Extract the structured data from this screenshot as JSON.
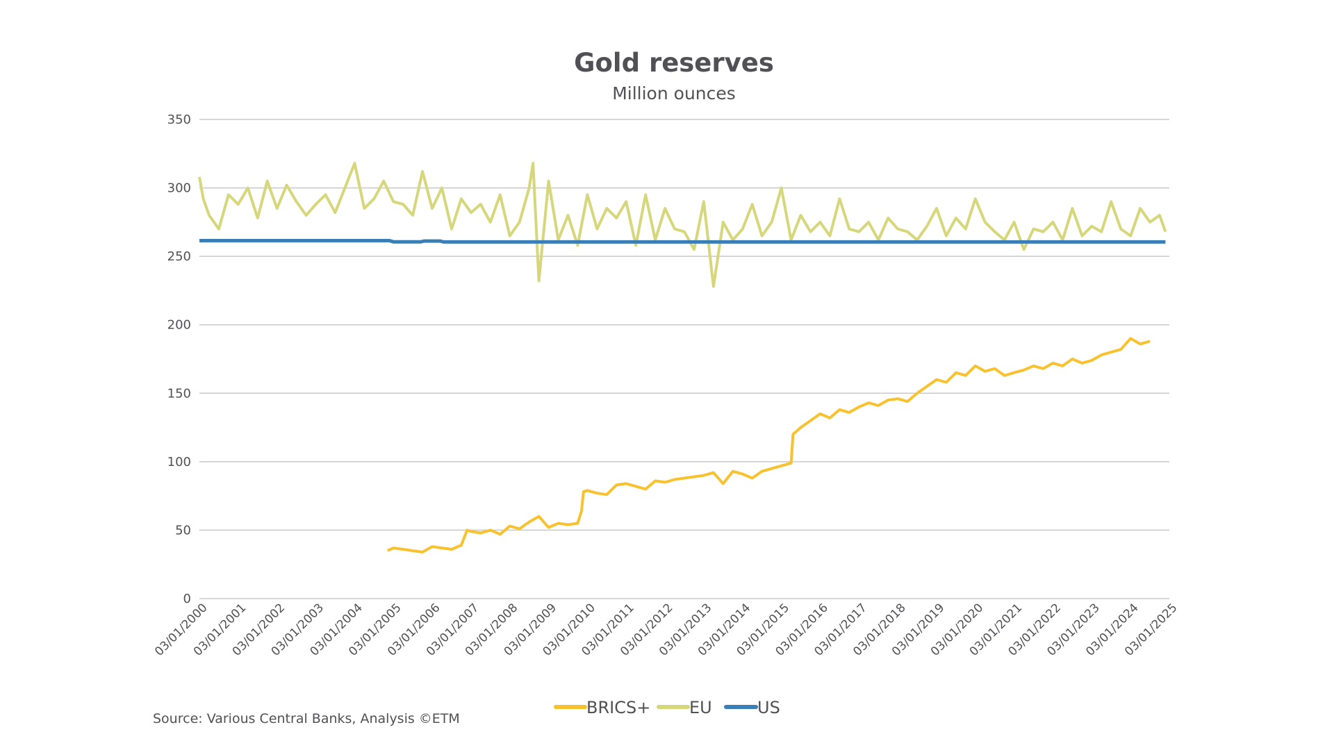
{
  "chart_data": {
    "type": "line",
    "title": "Gold reserves",
    "subtitle": "Million ounces",
    "xlabel": "",
    "ylabel": "",
    "ylim": [
      0,
      350
    ],
    "yticks": [
      0,
      50,
      100,
      150,
      200,
      250,
      300,
      350
    ],
    "ytick_labels": [
      "0",
      "50",
      "100",
      "150",
      "200",
      "250",
      "300",
      "350"
    ],
    "xlim": [
      2000,
      2025
    ],
    "xtick_labels": [
      "03/01/2000",
      "03/01/2001",
      "03/01/2002",
      "03/01/2003",
      "03/01/2004",
      "03/01/2005",
      "03/01/2006",
      "03/01/2007",
      "03/01/2008",
      "03/01/2009",
      "03/01/2010",
      "03/01/2011",
      "03/01/2012",
      "03/01/2013",
      "03/01/2014",
      "03/01/2015",
      "03/01/2016",
      "03/01/2017",
      "03/01/2018",
      "03/01/2019",
      "03/01/2020",
      "03/01/2021",
      "03/01/2022",
      "03/01/2023",
      "03/01/2024",
      "03/01/2025"
    ],
    "grid": true,
    "legend_position": "bottom",
    "source": "Source: Various Central Banks, Analysis ©ETM",
    "series": [
      {
        "name": "BRICS+",
        "color": "#F8C22E",
        "x": [
          2004.85,
          2005.0,
          2005.25,
          2005.5,
          2005.75,
          2006.0,
          2006.25,
          2006.5,
          2006.75,
          2006.9,
          2007.0,
          2007.25,
          2007.5,
          2007.75,
          2008.0,
          2008.25,
          2008.5,
          2008.75,
          2009.0,
          2009.25,
          2009.5,
          2009.75,
          2009.85,
          2009.9,
          2010.0,
          2010.25,
          2010.5,
          2010.75,
          2011.0,
          2011.25,
          2011.5,
          2011.75,
          2012.0,
          2012.25,
          2012.5,
          2012.75,
          2013.0,
          2013.25,
          2013.5,
          2013.75,
          2014.0,
          2014.25,
          2014.5,
          2014.75,
          2015.0,
          2015.25,
          2015.3,
          2015.5,
          2015.75,
          2016.0,
          2016.25,
          2016.5,
          2016.75,
          2017.0,
          2017.25,
          2017.5,
          2017.75,
          2018.0,
          2018.25,
          2018.5,
          2018.75,
          2019.0,
          2019.25,
          2019.5,
          2019.75,
          2020.0,
          2020.25,
          2020.5,
          2020.75,
          2021.0,
          2021.25,
          2021.5,
          2021.75,
          2022.0,
          2022.25,
          2022.5,
          2022.75,
          2023.0,
          2023.25,
          2023.5,
          2023.75,
          2024.0,
          2024.25,
          2024.5
        ],
        "values": [
          35,
          37,
          36,
          35,
          34,
          38,
          37,
          36,
          39,
          50,
          49,
          48,
          50,
          47,
          53,
          51,
          56,
          60,
          52,
          55,
          54,
          55,
          64,
          78,
          79,
          77,
          76,
          83,
          84,
          82,
          80,
          86,
          85,
          87,
          88,
          89,
          90,
          92,
          84,
          93,
          91,
          88,
          93,
          95,
          97,
          99,
          120,
          125,
          130,
          135,
          132,
          138,
          136,
          140,
          143,
          141,
          145,
          146,
          144,
          150,
          155,
          160,
          158,
          165,
          163,
          170,
          166,
          168,
          163,
          165,
          167,
          170,
          168,
          172,
          170,
          175,
          172,
          174,
          178,
          180,
          182,
          190,
          186,
          188
        ]
      },
      {
        "name": "EU",
        "color": "#D5D77A",
        "x": [
          2000.0,
          2000.1,
          2000.25,
          2000.5,
          2000.75,
          2001.0,
          2001.25,
          2001.5,
          2001.75,
          2002.0,
          2002.25,
          2002.5,
          2002.75,
          2003.0,
          2003.25,
          2003.5,
          2003.75,
          2004.0,
          2004.25,
          2004.5,
          2004.75,
          2005.0,
          2005.25,
          2005.5,
          2005.75,
          2006.0,
          2006.25,
          2006.5,
          2006.75,
          2007.0,
          2007.25,
          2007.5,
          2007.75,
          2008.0,
          2008.25,
          2008.5,
          2008.6,
          2008.75,
          2009.0,
          2009.25,
          2009.5,
          2009.75,
          2010.0,
          2010.25,
          2010.5,
          2010.75,
          2011.0,
          2011.25,
          2011.5,
          2011.75,
          2012.0,
          2012.25,
          2012.5,
          2012.75,
          2013.0,
          2013.25,
          2013.5,
          2013.75,
          2014.0,
          2014.25,
          2014.5,
          2014.75,
          2015.0,
          2015.25,
          2015.5,
          2015.75,
          2016.0,
          2016.25,
          2016.5,
          2016.75,
          2017.0,
          2017.25,
          2017.5,
          2017.75,
          2018.0,
          2018.25,
          2018.5,
          2018.75,
          2019.0,
          2019.25,
          2019.5,
          2019.75,
          2020.0,
          2020.25,
          2020.5,
          2020.75,
          2021.0,
          2021.25,
          2021.5,
          2021.75,
          2022.0,
          2022.25,
          2022.5,
          2022.75,
          2023.0,
          2023.25,
          2023.5,
          2023.75,
          2024.0,
          2024.25,
          2024.5,
          2024.75,
          2024.9
        ],
        "values": [
          308,
          292,
          280,
          270,
          295,
          288,
          300,
          278,
          305,
          285,
          302,
          290,
          280,
          288,
          295,
          282,
          300,
          318,
          285,
          292,
          305,
          290,
          288,
          280,
          312,
          285,
          300,
          270,
          292,
          282,
          288,
          275,
          295,
          265,
          275,
          300,
          318,
          232,
          305,
          262,
          280,
          258,
          295,
          270,
          285,
          278,
          290,
          258,
          295,
          262,
          285,
          270,
          268,
          255,
          290,
          228,
          275,
          262,
          270,
          288,
          265,
          275,
          300,
          262,
          280,
          268,
          275,
          265,
          292,
          270,
          268,
          275,
          262,
          278,
          270,
          268,
          262,
          272,
          285,
          265,
          278,
          270,
          292,
          275,
          268,
          262,
          275,
          255,
          270,
          268,
          275,
          262,
          285,
          265,
          272,
          268,
          290,
          270,
          265,
          285,
          275,
          280,
          268
        ]
      },
      {
        "name": "US",
        "color": "#3A7EB8",
        "x": [
          2000.0,
          2004.9,
          2005.0,
          2005.7,
          2005.8,
          2006.2,
          2006.3,
          2024.9
        ],
        "values": [
          261.5,
          261.5,
          260.6,
          260.6,
          261.2,
          261.2,
          260.5,
          260.5
        ]
      }
    ]
  }
}
